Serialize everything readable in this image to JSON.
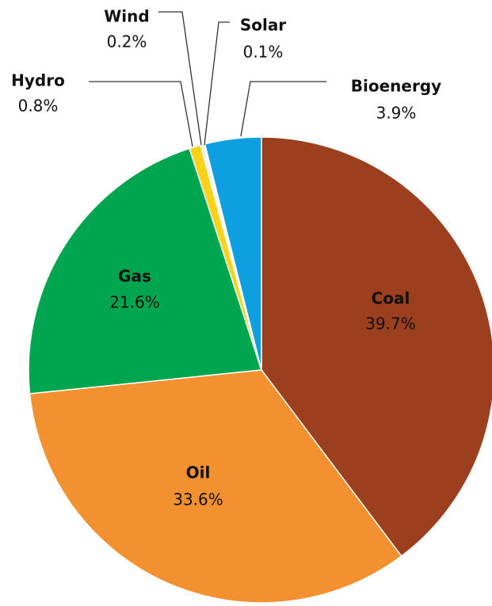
{
  "chart_data": {
    "type": "pie",
    "categories": [
      "Coal",
      "Oil",
      "Gas",
      "Hydro",
      "Wind",
      "Solar",
      "Bioenergy"
    ],
    "values": [
      39.7,
      33.6,
      21.6,
      0.8,
      0.2,
      0.1,
      3.9
    ],
    "value_labels": [
      "39.7%",
      "33.6%",
      "21.6%",
      "0.8%",
      "0.2%",
      "0.1%",
      "3.9%"
    ],
    "colors": [
      "#9b3f1f",
      "#f39130",
      "#00a54f",
      "#fcd11a",
      "#eeeeee",
      "#dcdcdc",
      "#0d9fe0"
    ]
  }
}
